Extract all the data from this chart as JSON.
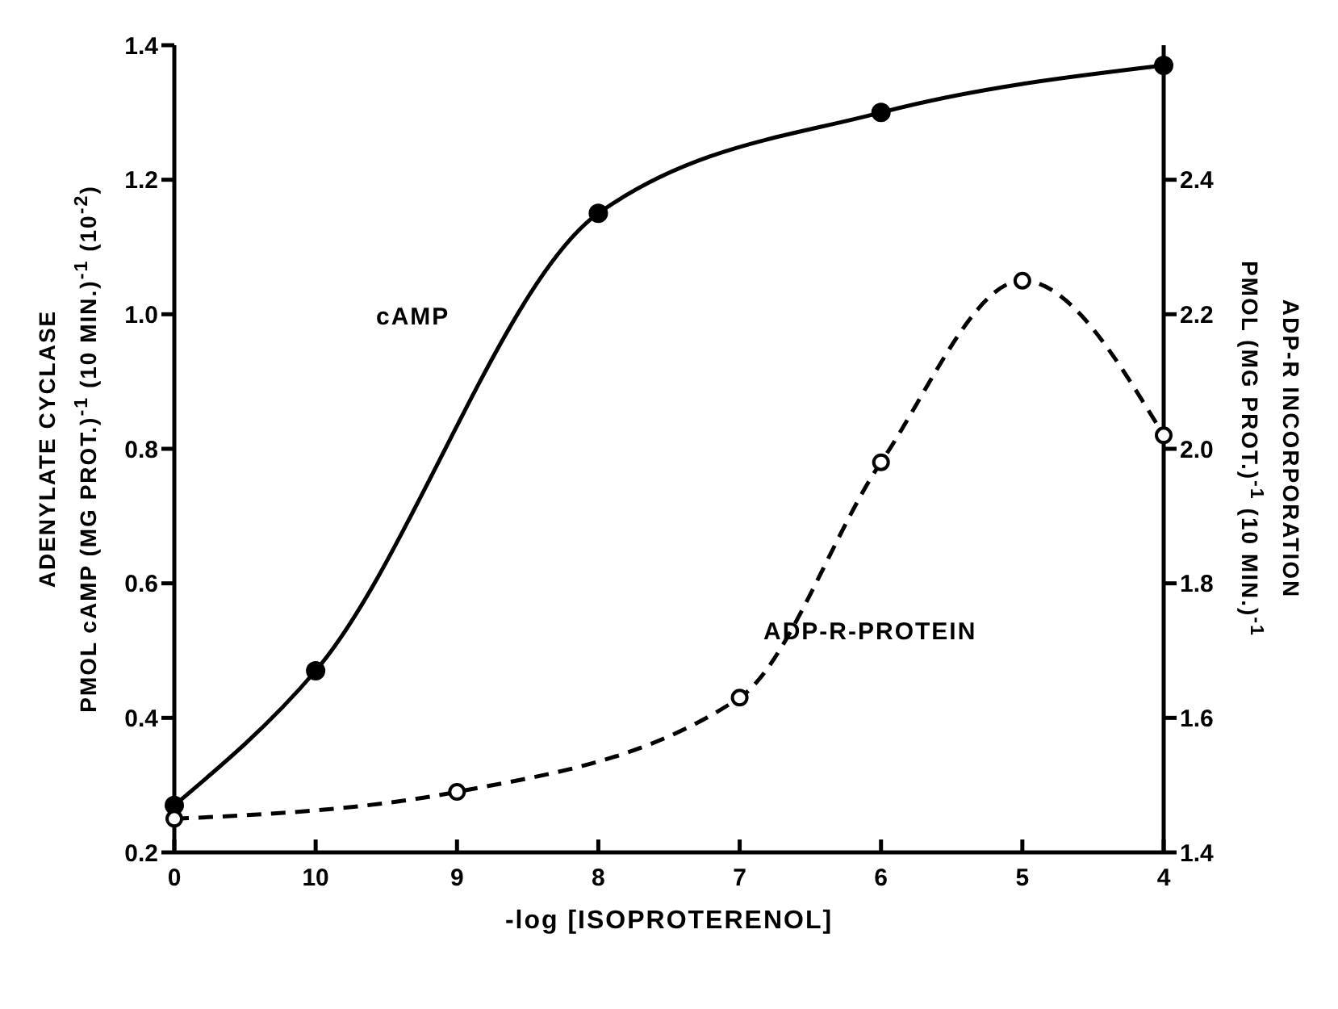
{
  "chart_data": {
    "type": "line",
    "xlabel": "-log [ISOPROTERENOL]",
    "ylabel": "ADENYLATE CYCLASE\nPMOL cAMP (MG PROT.)$^{-1}$ (10 MIN.)$^{-1}$ (10$^{-2}$)",
    "y2label": "ADP-R INCORPORATION\nPMOL (MG PROT.)$^{-1}$ (10 MIN.)$^{-1}$",
    "categories": [
      "0",
      "10",
      "9",
      "8",
      "7",
      "6",
      "5",
      "4"
    ],
    "series": [
      {
        "name": "cAMP",
        "color": "#000000",
        "values": [
          0.27,
          0.47,
          null,
          1.15,
          null,
          1.3,
          null,
          1.37
        ],
        "marker": "circle",
        "line_style": "solid"
      },
      {
        "name": "ADP-R-PROTEIN",
        "color": "#000000",
        "axis": "y2",
        "values": [
          1.45,
          null,
          1.49,
          null,
          1.63,
          1.98,
          2.25,
          2.02
        ],
        "marker": "circle",
        "line_style": "dashed"
      }
    ],
    "ylim": [
      0.2,
      1.4
    ],
    "yticks": [
      0.2,
      0.4,
      0.6,
      0.8,
      {
        "value": 1,
        "label": "1.0"
      },
      1.2,
      1.4
    ],
    "y2lim": [
      1.4,
      2.6
    ],
    "y2ticks": [
      1.4,
      1.6,
      1.8,
      {
        "value": 2,
        "label": "2.0"
      },
      2.2,
      2.4
    ],
    "grid": false,
    "legend": false
  }
}
